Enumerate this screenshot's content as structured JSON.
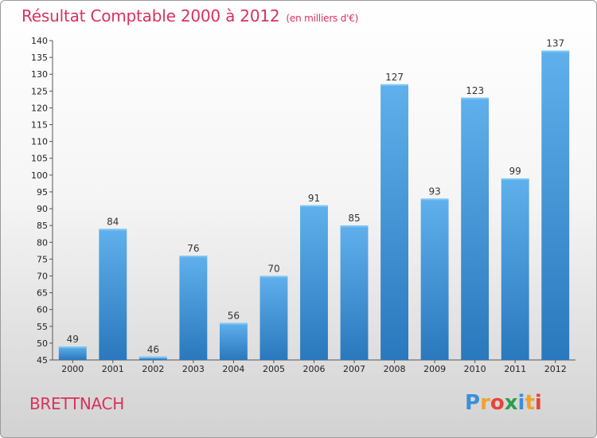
{
  "chart_data": {
    "type": "bar",
    "title": "Résultat Comptable 2000 à 2012",
    "subtitle": "(en milliers d'€)",
    "categories": [
      "2000",
      "2001",
      "2002",
      "2003",
      "2004",
      "2005",
      "2006",
      "2007",
      "2008",
      "2009",
      "2010",
      "2011",
      "2012"
    ],
    "values": [
      49,
      84,
      46,
      76,
      56,
      70,
      91,
      85,
      127,
      93,
      123,
      99,
      137
    ],
    "ylim": [
      45,
      140
    ],
    "ytick_step": 5,
    "xlabel": "",
    "ylabel": "",
    "grid": false,
    "bar_color": "#3a8fd8"
  },
  "place_name": "BRETTNACH",
  "logo": {
    "letters": [
      "P",
      "r",
      "o",
      "x",
      "i",
      "t",
      "i"
    ],
    "colors": [
      "#3a8fd8",
      "#f2a12e",
      "#e8443a",
      "#2e9e4b",
      "#3a8fd8",
      "#f2a12e",
      "#e8443a"
    ]
  }
}
